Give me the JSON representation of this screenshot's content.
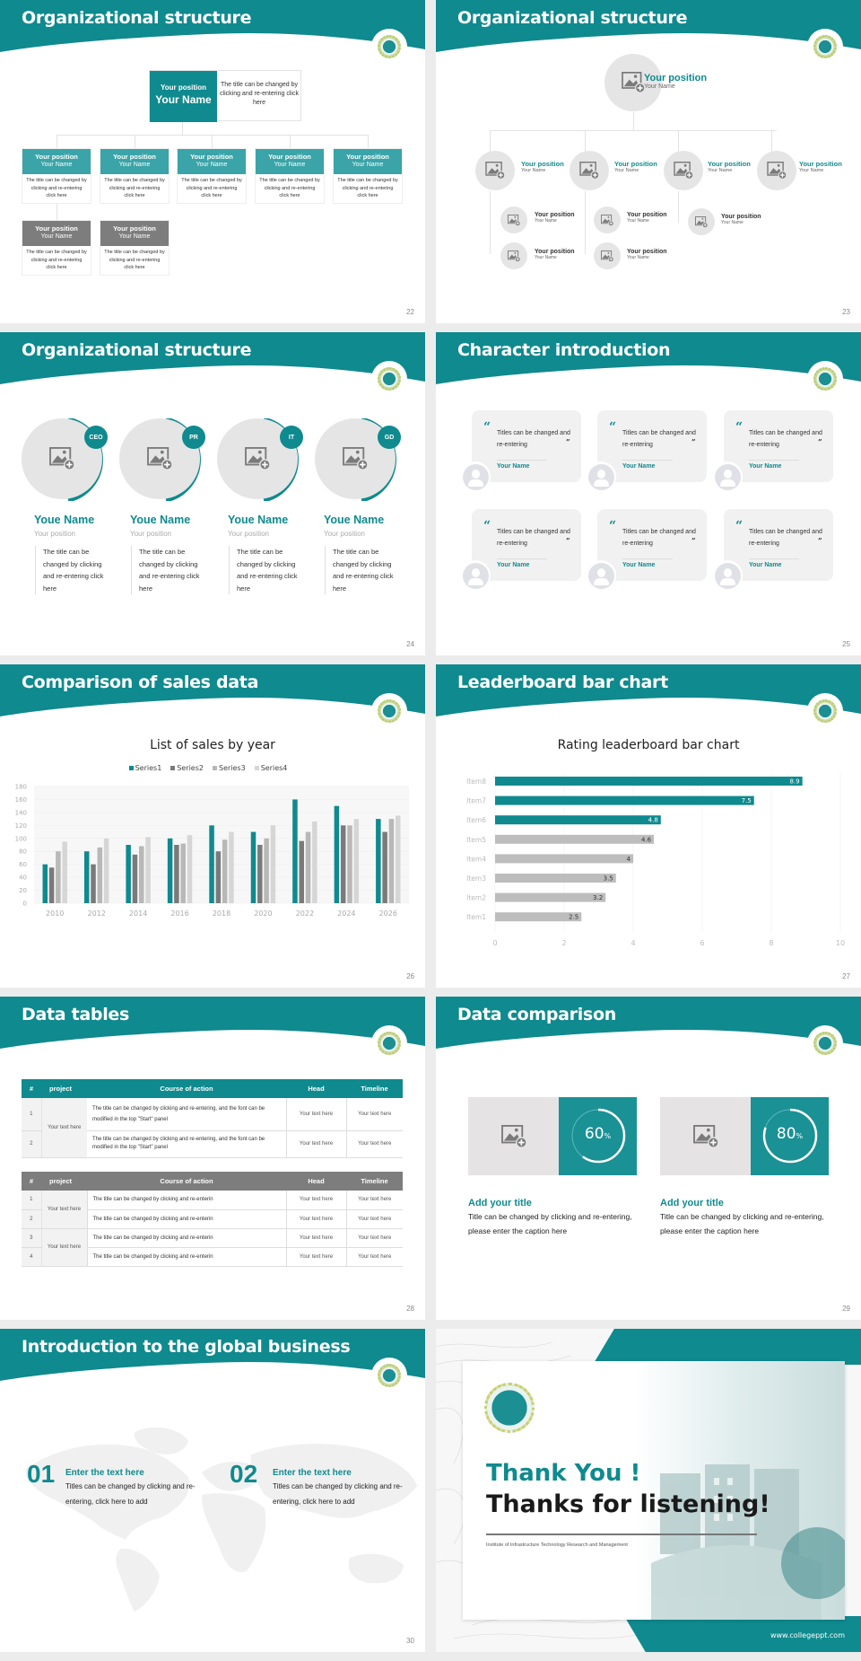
{
  "colors": {
    "accent": "#0f8a8e",
    "accent_light": "#3aa4a8",
    "gray_box": "#7d7d7d",
    "placeholder": "#e5e5e5",
    "background": "#ececec"
  },
  "slides": [
    {
      "page": "22",
      "title": "Organizational structure",
      "top": {
        "position": "Your position",
        "name": "Your Name",
        "desc": "The title can be changed by clicking and re-entering click here"
      },
      "row1": [
        {
          "position": "Your position",
          "name": "Your Name",
          "desc": "The title can be changed by clicking and re-entering click here"
        },
        {
          "position": "Your position",
          "name": "Your Name",
          "desc": "The title can be changed by clicking and re-entering click here"
        },
        {
          "position": "Your position",
          "name": "Your Name",
          "desc": "The title can be changed by clicking and re-entering click here"
        },
        {
          "position": "Your position",
          "name": "Your Name",
          "desc": "The title can be changed by clicking and re-entering click here"
        },
        {
          "position": "Your position",
          "name": "Your Name",
          "desc": "The title can be changed by clicking and re-entering click here"
        }
      ],
      "row2": [
        {
          "position": "Your position",
          "name": "Your Name",
          "desc": "The title can be changed by clicking and re-entering click here"
        },
        {
          "position": "Your position",
          "name": "Your Name",
          "desc": "The title can be changed by clicking and re-entering click here"
        }
      ]
    },
    {
      "page": "23",
      "title": "Organizational structure",
      "top": {
        "position": "Your position",
        "name": "Your Name"
      },
      "level2": [
        {
          "position": "Your position",
          "name": "Your Name"
        },
        {
          "position": "Your position",
          "name": "Your Name"
        },
        {
          "position": "Your position",
          "name": "Your Name"
        },
        {
          "position": "Your position",
          "name": "Your Name"
        }
      ],
      "level3": [
        {
          "position": "Your position",
          "name": "Your Name"
        },
        {
          "position": "Your position",
          "name": "Your Name"
        },
        {
          "position": "Your position",
          "name": "Your Name"
        },
        {
          "position": "Your position",
          "name": "Your Name"
        },
        {
          "position": "Your position",
          "name": "Your Name"
        }
      ]
    },
    {
      "page": "24",
      "title": "Organizational structure",
      "people": [
        {
          "badge": "CEO",
          "name": "Youe Name",
          "position": "Your position",
          "desc": "The title can be changed by clicking and re-entering click here"
        },
        {
          "badge": "PR",
          "name": "Youe Name",
          "position": "Your position",
          "desc": "The title can be changed by clicking and re-entering click here"
        },
        {
          "badge": "IT",
          "name": "Youe Name",
          "position": "Your position",
          "desc": "The title can be changed by clicking and re-entering click here"
        },
        {
          "badge": "GD",
          "name": "Youe Name",
          "position": "Your position",
          "desc": "The title can be changed by clicking and re-entering click here"
        }
      ]
    },
    {
      "page": "25",
      "title": "Character introduction",
      "quote_open": "“",
      "quote_close": "”",
      "cards": [
        {
          "text": "Titles can be changed and re-entering",
          "name": "Your Name"
        },
        {
          "text": "Titles can be changed and re-entering",
          "name": "Your Name"
        },
        {
          "text": "Titles can be changed and re-entering",
          "name": "Your Name"
        },
        {
          "text": "Titles can be changed and re-entering",
          "name": "Your Name"
        },
        {
          "text": "Titles can be changed and re-entering",
          "name": "Your Name"
        },
        {
          "text": "Titles can be changed and re-entering",
          "name": "Your Name"
        }
      ]
    },
    {
      "page": "26",
      "title": "Comparison of sales data"
    },
    {
      "page": "27",
      "title": "Leaderboard bar chart"
    },
    {
      "page": "28",
      "title": "Data tables",
      "table1": {
        "headers": [
          "#",
          "project",
          "Course of action",
          "Head",
          "Timeline"
        ],
        "project": "Your text here",
        "rows": [
          {
            "num": "1",
            "action": "The title can be changed by clicking and re-entering, and the font can be modified in the top \"Start\" panel",
            "head": "Your text here",
            "timeline": "Your text here"
          },
          {
            "num": "2",
            "action": "The title can be changed by clicking and re-entering, and the font can be modified in the top \"Start\" panel",
            "head": "Your text here",
            "timeline": "Your text here"
          }
        ]
      },
      "table2": {
        "headers": [
          "#",
          "project",
          "Course of action",
          "Head",
          "Timeline"
        ],
        "project_a": "Your text here",
        "project_b": "Your text here",
        "rows": [
          {
            "num": "1",
            "action": "The title can be changed by clicking and re-enterin",
            "head": "Your text here",
            "timeline": "Your text here"
          },
          {
            "num": "2",
            "action": "The title can be changed by clicking and re-enterin",
            "head": "Your text here",
            "timeline": "Your text here"
          },
          {
            "num": "3",
            "action": "The title can be changed by clicking and re-enterin",
            "head": "Your text here",
            "timeline": "Your text here"
          },
          {
            "num": "4",
            "action": "The title can be changed by clicking and re-enterin",
            "head": "Your text here",
            "timeline": "Your text here"
          }
        ]
      }
    },
    {
      "page": "29",
      "title": "Data comparison",
      "items": [
        {
          "percent": "60",
          "unit": "%",
          "title": "Add your title",
          "desc": "Title can be changed by clicking and re-entering, please enter the caption here"
        },
        {
          "percent": "80",
          "unit": "%",
          "title": "Add your title",
          "desc": "Title can be changed by clicking and re-entering, please enter the caption here"
        }
      ]
    },
    {
      "page": "30",
      "title": "Introduction to the global business",
      "items": [
        {
          "num": "01",
          "title": "Enter the text here",
          "desc": "Titles can be changed by clicking and re-entering, click here to add"
        },
        {
          "num": "02",
          "title": "Enter the text here",
          "desc": "Titles can be changed by clicking and re-entering, click here to add"
        }
      ]
    },
    {
      "thanks": "Thank You !",
      "subtitle": "Thanks for listening!",
      "institute": "Institute of Infrastructure Technology Research and Management",
      "website": "www.collegeppt.com"
    }
  ],
  "chart_data": [
    {
      "type": "bar",
      "title": "List of sales by year",
      "categories": [
        "2010",
        "2012",
        "2014",
        "2016",
        "2018",
        "2020",
        "2022",
        "2024",
        "2026"
      ],
      "series": [
        {
          "name": "Series1",
          "color": "#0f8a8e",
          "values": [
            60,
            80,
            90,
            100,
            120,
            110,
            160,
            150,
            130
          ]
        },
        {
          "name": "Series2",
          "color": "#7a7a7a",
          "values": [
            55,
            60,
            75,
            90,
            80,
            90,
            96,
            120,
            110
          ]
        },
        {
          "name": "Series3",
          "color": "#b8b8b8",
          "values": [
            80,
            86,
            88,
            92,
            98,
            100,
            110,
            120,
            130
          ]
        },
        {
          "name": "Series4",
          "color": "#d6d6d6",
          "values": [
            95,
            100,
            102,
            105,
            110,
            120,
            126,
            130,
            135
          ]
        }
      ],
      "yticks": [
        "0",
        "20",
        "40",
        "60",
        "80",
        "100",
        "120",
        "140",
        "160",
        "180"
      ],
      "ylim": [
        0,
        180
      ],
      "xlabel": "",
      "ylabel": "",
      "legend_position": "top",
      "grid": true
    },
    {
      "type": "bar",
      "orientation": "horizontal",
      "title": "Rating leaderboard bar chart",
      "categories": [
        "Item8",
        "Item7",
        "Item6",
        "Item5",
        "Item4",
        "Item3",
        "Item2",
        "Item1"
      ],
      "values": [
        8.9,
        7.5,
        4.8,
        4.6,
        4,
        3.5,
        3.2,
        2.5
      ],
      "labels": [
        "8.9",
        "7.5",
        "4.8",
        "4.6",
        "4",
        "3.5",
        "3.2",
        "2.5"
      ],
      "highlight_top": 3,
      "xticks": [
        "0",
        "2",
        "4",
        "6",
        "8",
        "10"
      ],
      "xlim": [
        0,
        10
      ],
      "grid": true
    }
  ]
}
